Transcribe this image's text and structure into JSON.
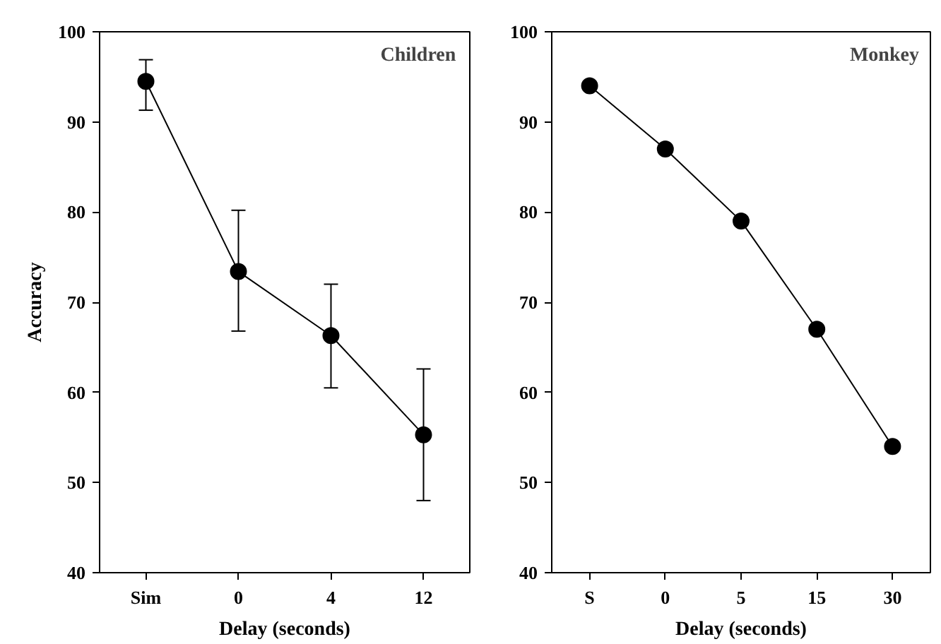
{
  "chart_data": [
    {
      "type": "line",
      "ylabel": "Accuracy",
      "xlabel": "Delay (seconds)",
      "categories": [
        "Sim",
        "0",
        "4",
        "12"
      ],
      "values": [
        94.5,
        73.4,
        66.3,
        55.3
      ],
      "errors": [
        [
          91.3,
          96.9
        ],
        [
          66.8,
          80.2
        ],
        [
          60.5,
          72.0
        ],
        [
          48.0,
          62.6
        ]
      ],
      "color": "#000000",
      "marker": "circle",
      "line_style": "solid",
      "ylim": [
        40,
        100
      ],
      "yticks": [
        40,
        50,
        60,
        70,
        80,
        90,
        100
      ],
      "grid": false,
      "annotations": [
        "Children"
      ]
    },
    {
      "type": "line",
      "xlabel": "Delay (seconds)",
      "categories": [
        "S",
        "0",
        "5",
        "15",
        "30"
      ],
      "values": [
        94.0,
        87.0,
        79.0,
        67.0,
        54.0
      ],
      "color": "#000000",
      "marker": "circle",
      "line_style": "solid",
      "ylim": [
        40,
        100
      ],
      "yticks": [
        40,
        50,
        60,
        70,
        80,
        90,
        100
      ],
      "grid": false,
      "annotations": [
        "Monkey"
      ]
    }
  ]
}
